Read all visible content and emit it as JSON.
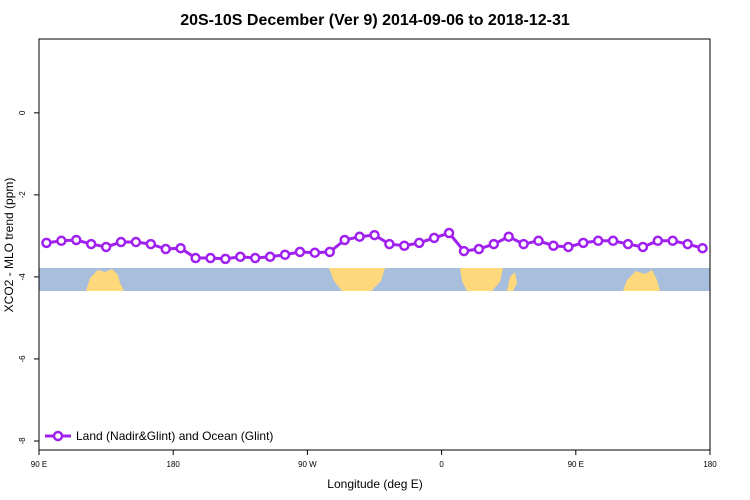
{
  "chart_data": {
    "type": "line",
    "title": "20S-10S December (Ver 9)   2014-09-06 to 2018-12-31",
    "x_label": "Longitude (deg E)",
    "y_label": "XCO2 - MLO trend (ppm)",
    "x": [
      95,
      105,
      115,
      125,
      135,
      145,
      155,
      165,
      175,
      185,
      195,
      205,
      215,
      225,
      235,
      245,
      255,
      265,
      275,
      285,
      295,
      305,
      315,
      325,
      335,
      345,
      355,
      365,
      375,
      385,
      395,
      405,
      415,
      425,
      435,
      445,
      455,
      465,
      475,
      485,
      495,
      505,
      515,
      525,
      535
    ],
    "series": [
      {
        "name": "Land (Nadir&Glint) and Ocean (Glint)",
        "color": "#a020f0",
        "values": [
          -3.17,
          -3.12,
          -3.1,
          -3.2,
          -3.27,
          -3.15,
          -3.15,
          -3.2,
          -3.32,
          -3.3,
          -3.54,
          -3.54,
          -3.56,
          -3.51,
          -3.54,
          -3.51,
          -3.46,
          -3.39,
          -3.41,
          -3.39,
          -3.1,
          -3.02,
          -2.98,
          -3.2,
          -3.24,
          -3.17,
          -3.05,
          -2.93,
          -3.37,
          -3.32,
          -3.2,
          -3.02,
          -3.2,
          -3.12,
          -3.24,
          -3.27,
          -3.17,
          -3.12,
          -3.12,
          -3.2,
          -3.27,
          -3.12,
          -3.12,
          -3.2,
          -3.3
        ]
      }
    ],
    "xlim": [
      90,
      540
    ],
    "xticks": [
      {
        "value": 90,
        "label": "90 E"
      },
      180,
      {
        "value": 270,
        "label": "90 W"
      },
      {
        "value": 360,
        "label": "0"
      },
      {
        "value": 450,
        "label": "90 E"
      },
      {
        "value": 540,
        "label": "180"
      }
    ],
    "ylim": [
      -8.22,
      1.8
    ],
    "yticks": [
      0,
      -2,
      -4,
      -6,
      -8
    ],
    "legend": "bottom-left"
  }
}
